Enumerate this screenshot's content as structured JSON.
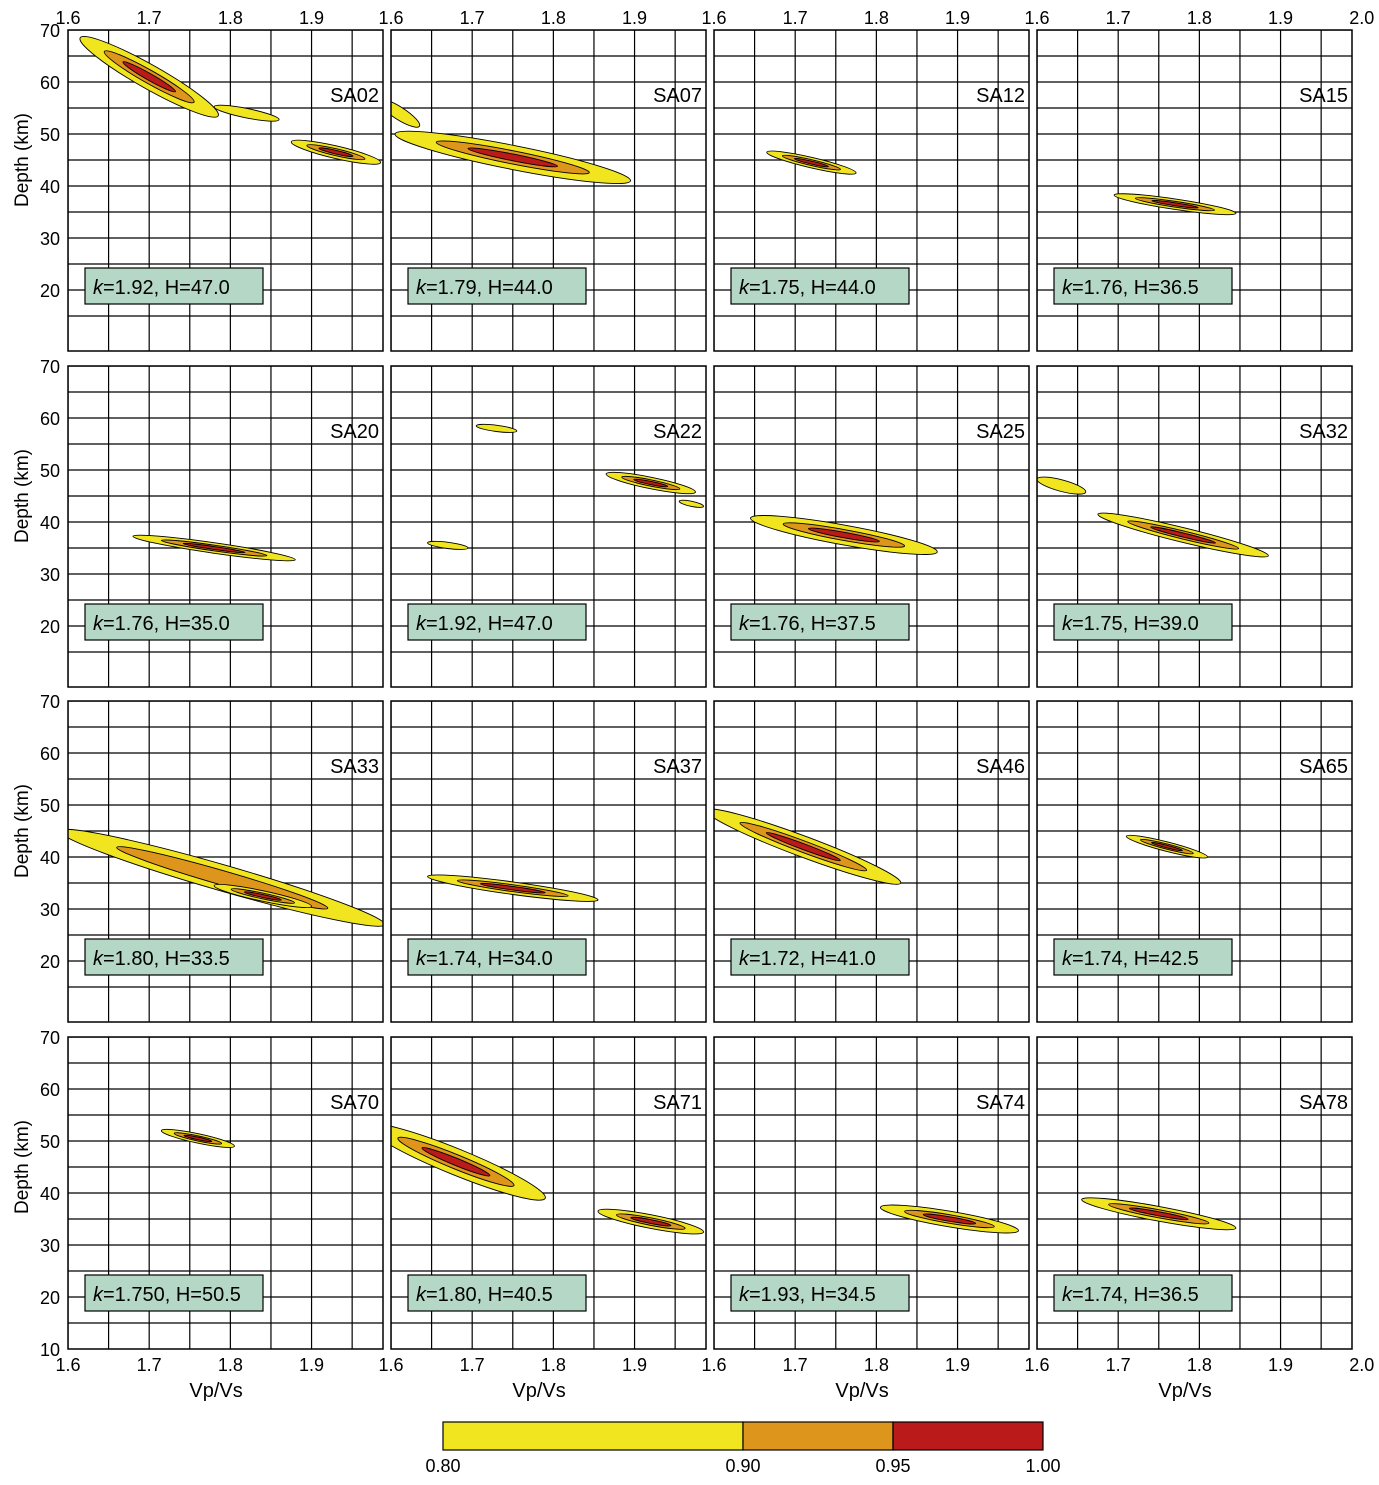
{
  "chart_data": {
    "type": "contour",
    "x_axis": {
      "label": "Vp/Vs",
      "range": [
        1.6,
        2.0
      ],
      "ticks": [
        "1.6",
        "1.7",
        "1.8",
        "1.9",
        "2.0"
      ]
    },
    "y_axis": {
      "label": "Depth (km)",
      "range": [
        10,
        70
      ],
      "ticks": [
        "10",
        "20",
        "30",
        "40",
        "50",
        "60",
        "70"
      ]
    },
    "grid": true,
    "colorbar": {
      "levels": [
        0.8,
        0.9,
        0.95,
        1.0
      ],
      "tick_labels": [
        "0.80",
        "0.90",
        "0.95",
        "1.00"
      ],
      "colors": [
        "#f0e51e",
        "#de951c",
        "#bb1a1a"
      ]
    },
    "panels": [
      {
        "station": "SA02",
        "k_label": "k",
        "result_text": "=1.92, H=47.0",
        "k": 1.92,
        "H": 47.0,
        "blobs": [
          {
            "x": 1.7,
            "y": 61,
            "len": 0.17,
            "dy": 15,
            "w": 2.3,
            "lvl": 3
          },
          {
            "x": 1.93,
            "y": 46.5,
            "len": 0.11,
            "dy": 4,
            "w": 1.2,
            "lvl": 3
          },
          {
            "x": 1.82,
            "y": 54,
            "len": 0.08,
            "dy": 2.5,
            "w": 0.9,
            "lvl": 1
          }
        ]
      },
      {
        "station": "SA07",
        "k_label": "k",
        "result_text": "=1.79, H=44.0",
        "k": 1.79,
        "H": 44.0,
        "blobs": [
          {
            "x": 1.75,
            "y": 45.5,
            "len": 0.29,
            "dy": 9,
            "w": 2.3,
            "lvl": 3
          },
          {
            "x": 1.61,
            "y": 54,
            "len": 0.05,
            "dy": 5,
            "w": 1.2,
            "lvl": 1
          }
        ]
      },
      {
        "station": "SA12",
        "k_label": "k",
        "result_text": "=1.75, H=44.0",
        "k": 1.75,
        "H": 44.0,
        "blobs": [
          {
            "x": 1.72,
            "y": 44.5,
            "len": 0.11,
            "dy": 4,
            "w": 1.0,
            "lvl": 3
          }
        ]
      },
      {
        "station": "SA15",
        "k_label": "k",
        "result_text": "=1.76, H=36.5",
        "k": 1.76,
        "H": 36.5,
        "blobs": [
          {
            "x": 1.77,
            "y": 36.5,
            "len": 0.15,
            "dy": 3.5,
            "w": 1.0,
            "lvl": 3
          }
        ]
      },
      {
        "station": "SA20",
        "k_label": "k",
        "result_text": "=1.76, H=35.0",
        "k": 1.76,
        "H": 35.0,
        "blobs": [
          {
            "x": 1.78,
            "y": 35,
            "len": 0.2,
            "dy": 4.5,
            "w": 1.0,
            "lvl": 3
          }
        ]
      },
      {
        "station": "SA22",
        "k_label": "k",
        "result_text": "=1.92, H=47.0",
        "k": 1.92,
        "H": 47.0,
        "blobs": [
          {
            "x": 1.92,
            "y": 47.5,
            "len": 0.11,
            "dy": 3.5,
            "w": 1.1,
            "lvl": 3
          },
          {
            "x": 1.73,
            "y": 58,
            "len": 0.05,
            "dy": 1,
            "w": 0.6,
            "lvl": 1
          },
          {
            "x": 1.67,
            "y": 35.5,
            "len": 0.05,
            "dy": 1,
            "w": 0.6,
            "lvl": 1
          },
          {
            "x": 1.97,
            "y": 43.5,
            "len": 0.03,
            "dy": 1,
            "w": 0.5,
            "lvl": 1
          }
        ]
      },
      {
        "station": "SA25",
        "k_label": "k",
        "result_text": "=1.76, H=37.5",
        "k": 1.76,
        "H": 37.5,
        "blobs": [
          {
            "x": 1.76,
            "y": 37.5,
            "len": 0.23,
            "dy": 6.5,
            "w": 1.9,
            "lvl": 3
          }
        ]
      },
      {
        "station": "SA32",
        "k_label": "k",
        "result_text": "=1.75, H=39.0",
        "k": 1.75,
        "H": 39.0,
        "blobs": [
          {
            "x": 1.78,
            "y": 37.5,
            "len": 0.21,
            "dy": 8,
            "w": 1.4,
            "lvl": 3
          },
          {
            "x": 1.63,
            "y": 47,
            "len": 0.06,
            "dy": 2.5,
            "w": 1.1,
            "lvl": 1
          }
        ]
      },
      {
        "station": "SA33",
        "k_label": "k",
        "result_text": "=1.80, H=33.5",
        "k": 1.8,
        "H": 33.5,
        "blobs": [
          {
            "x": 1.79,
            "y": 36,
            "len": 0.4,
            "dy": 18,
            "w": 2.5,
            "lvl": 2
          },
          {
            "x": 1.84,
            "y": 32.5,
            "len": 0.12,
            "dy": 4,
            "w": 1.0,
            "lvl": 3
          }
        ]
      },
      {
        "station": "SA37",
        "k_label": "k",
        "result_text": "=1.74, H=34.0",
        "k": 1.74,
        "H": 34.0,
        "blobs": [
          {
            "x": 1.75,
            "y": 34,
            "len": 0.21,
            "dy": 4.5,
            "w": 1.2,
            "lvl": 3
          }
        ]
      },
      {
        "station": "SA46",
        "k_label": "k",
        "result_text": "=1.72, H=41.0",
        "k": 1.72,
        "H": 41.0,
        "blobs": [
          {
            "x": 1.71,
            "y": 42,
            "len": 0.24,
            "dy": 14,
            "w": 2.0,
            "lvl": 3
          }
        ]
      },
      {
        "station": "SA65",
        "k_label": "k",
        "result_text": "=1.74, H=42.5",
        "k": 1.74,
        "H": 42.5,
        "blobs": [
          {
            "x": 1.76,
            "y": 42,
            "len": 0.1,
            "dy": 4,
            "w": 0.9,
            "lvl": 3
          }
        ]
      },
      {
        "station": "SA70",
        "k_label": "k",
        "result_text": "=1.750, H=50.5",
        "k": 1.75,
        "H": 50.5,
        "blobs": [
          {
            "x": 1.76,
            "y": 50.5,
            "len": 0.09,
            "dy": 3,
            "w": 0.9,
            "lvl": 3
          }
        ]
      },
      {
        "station": "SA71",
        "k_label": "k",
        "result_text": "=1.80, H=40.5",
        "k": 1.8,
        "H": 40.5,
        "blobs": [
          {
            "x": 1.68,
            "y": 46,
            "len": 0.22,
            "dy": 14,
            "w": 2.5,
            "lvl": 3
          },
          {
            "x": 1.92,
            "y": 34.5,
            "len": 0.13,
            "dy": 4,
            "w": 1.3,
            "lvl": 3
          }
        ]
      },
      {
        "station": "SA74",
        "k_label": "k",
        "result_text": "=1.93, H=34.5",
        "k": 1.93,
        "H": 34.5,
        "blobs": [
          {
            "x": 1.89,
            "y": 35,
            "len": 0.17,
            "dy": 4.5,
            "w": 1.5,
            "lvl": 3
          }
        ]
      },
      {
        "station": "SA78",
        "k_label": "k",
        "result_text": "=1.74, H=36.5",
        "k": 1.74,
        "H": 36.5,
        "blobs": [
          {
            "x": 1.75,
            "y": 36,
            "len": 0.19,
            "dy": 5.5,
            "w": 1.4,
            "lvl": 3
          }
        ]
      }
    ]
  }
}
